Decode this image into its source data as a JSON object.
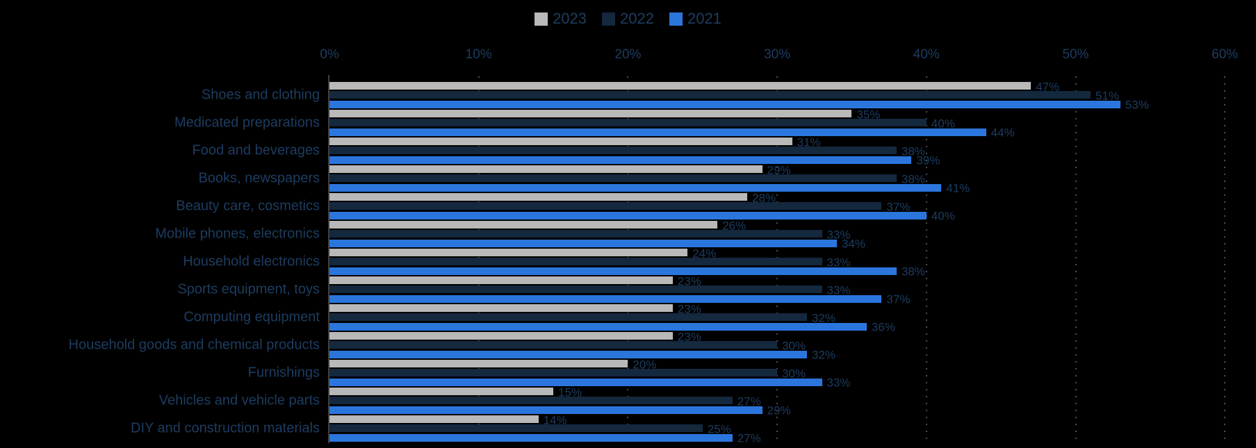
{
  "chart_data": {
    "type": "bar",
    "orientation": "horizontal",
    "title": "",
    "categories": [
      "Shoes and clothing",
      "Medicated preparations",
      "Food and beverages",
      "Books, newspapers",
      "Beauty care, cosmetics",
      "Mobile phones, electronics",
      "Household electronics",
      "Sports equipment, toys",
      "Computing equipment",
      "Household goods and chemical products",
      "Furnishings",
      "Vehicles and vehicle parts",
      "DIY and construction materials"
    ],
    "series": [
      {
        "name": "2023",
        "color": "#b9b9b9",
        "values": [
          47,
          35,
          31,
          29,
          28,
          26,
          24,
          23,
          23,
          23,
          20,
          15,
          14
        ]
      },
      {
        "name": "2022",
        "color": "#14283e",
        "values": [
          51,
          40,
          38,
          38,
          37,
          33,
          33,
          33,
          32,
          30,
          30,
          27,
          25
        ]
      },
      {
        "name": "2021",
        "color": "#2b76dd",
        "values": [
          53,
          44,
          39,
          41,
          40,
          34,
          38,
          37,
          36,
          32,
          33,
          29,
          27
        ]
      }
    ],
    "value_suffix": "%",
    "data_labels": true,
    "x_axis": {
      "position": "top",
      "min": 0,
      "max": 60,
      "tick_step": 10,
      "ticks": [
        "0%",
        "10%",
        "20%",
        "30%",
        "40%",
        "50%",
        "60%"
      ]
    },
    "grid": {
      "style": "dotted",
      "lines": "vertical-at-each-tick"
    },
    "legend_position": "top-center",
    "colors": {
      "background": "#000000",
      "text": "#1d3c60",
      "gridline": "#4e4e4e",
      "axis_line": "#404040"
    }
  }
}
